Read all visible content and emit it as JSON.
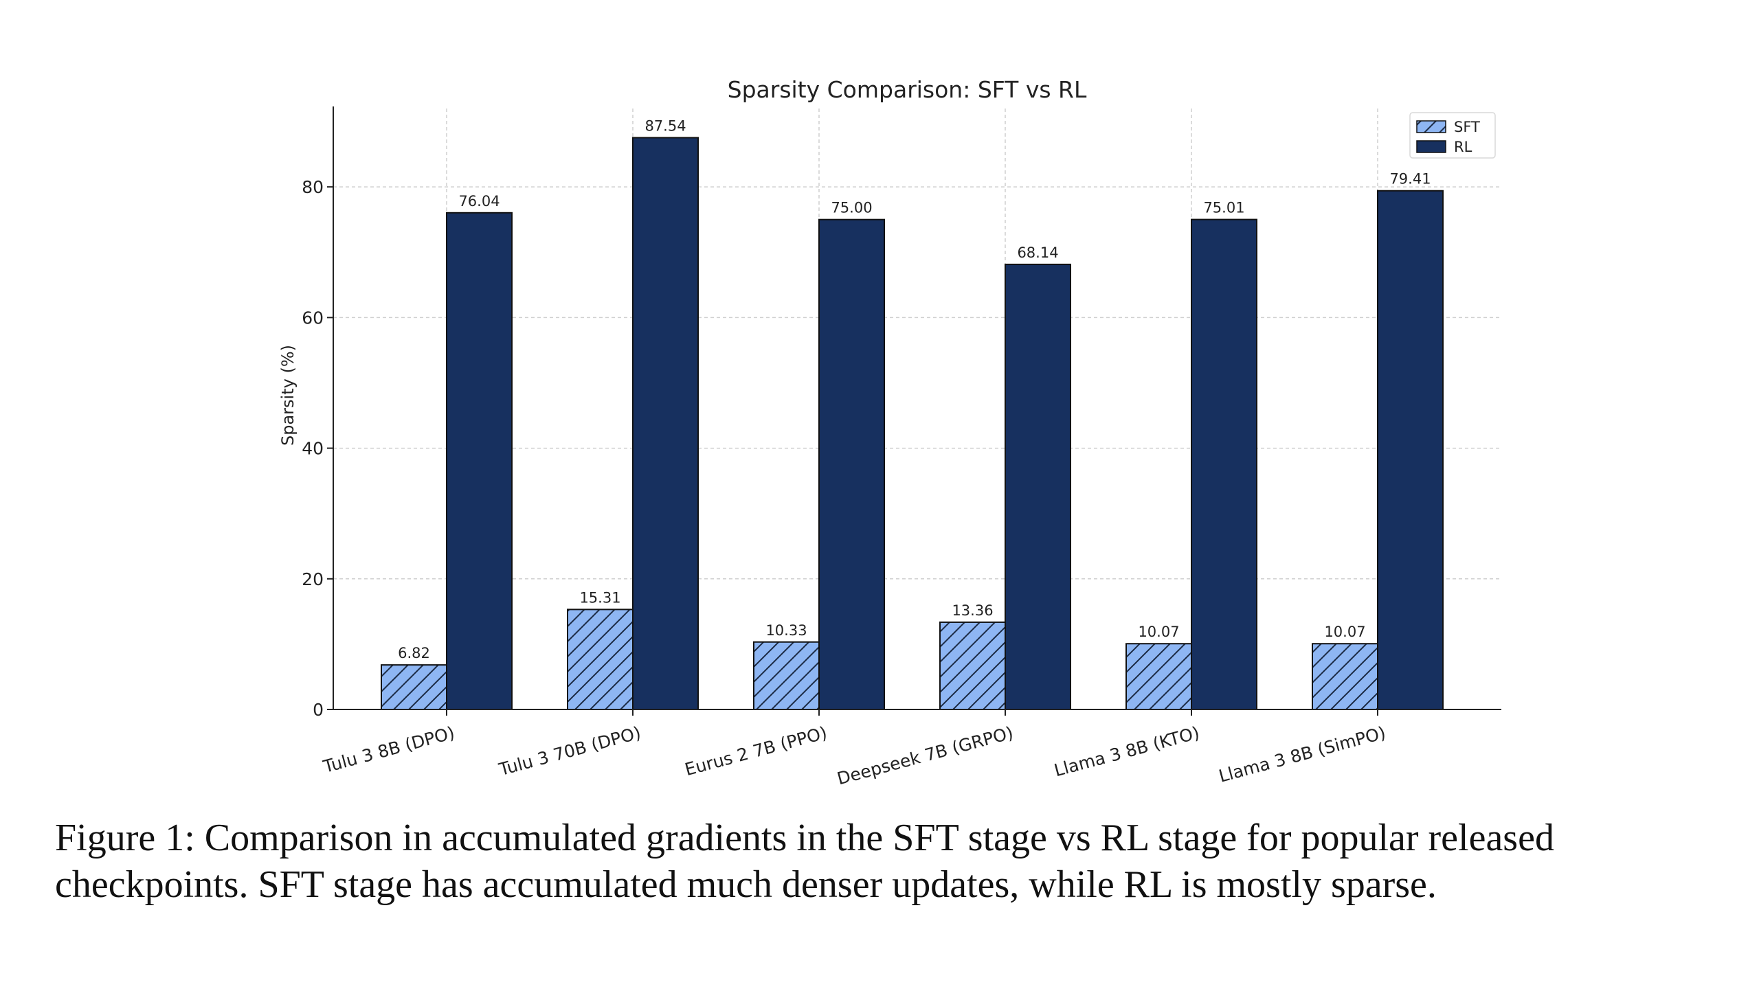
{
  "chart_data": {
    "type": "bar",
    "title": "Sparsity Comparison: SFT vs RL",
    "xlabel": "",
    "ylabel": "Sparsity (%)",
    "ylim": [
      0,
      92
    ],
    "yticks": [
      0,
      20,
      40,
      60,
      80
    ],
    "grid": true,
    "legend_position": "top-right",
    "categories": [
      "Tulu 3 8B (DPO)",
      "Tulu 3 70B (DPO)",
      "Eurus 2 7B (PPO)",
      "Deepseek 7B (GRPO)",
      "Llama 3 8B (KTO)",
      "Llama 3 8B (SimPO)"
    ],
    "series": [
      {
        "name": "SFT",
        "values": [
          6.82,
          15.31,
          10.33,
          13.36,
          10.07,
          10.07
        ],
        "labels": [
          "6.82",
          "15.31",
          "10.33",
          "13.36",
          "10.07",
          "10.07"
        ],
        "color": "#8eb6f3",
        "hatch": true
      },
      {
        "name": "RL",
        "values": [
          76.04,
          87.54,
          75.0,
          68.14,
          75.01,
          79.41
        ],
        "labels": [
          "76.04",
          "87.54",
          "75.00",
          "68.14",
          "75.01",
          "79.41"
        ],
        "color": "#17305f",
        "hatch": false
      }
    ]
  },
  "caption": {
    "text": "Figure 1: Comparison in accumulated gradients in the SFT stage vs RL stage for popular released checkpoints. SFT stage has accumulated much denser updates, while RL is mostly sparse."
  }
}
